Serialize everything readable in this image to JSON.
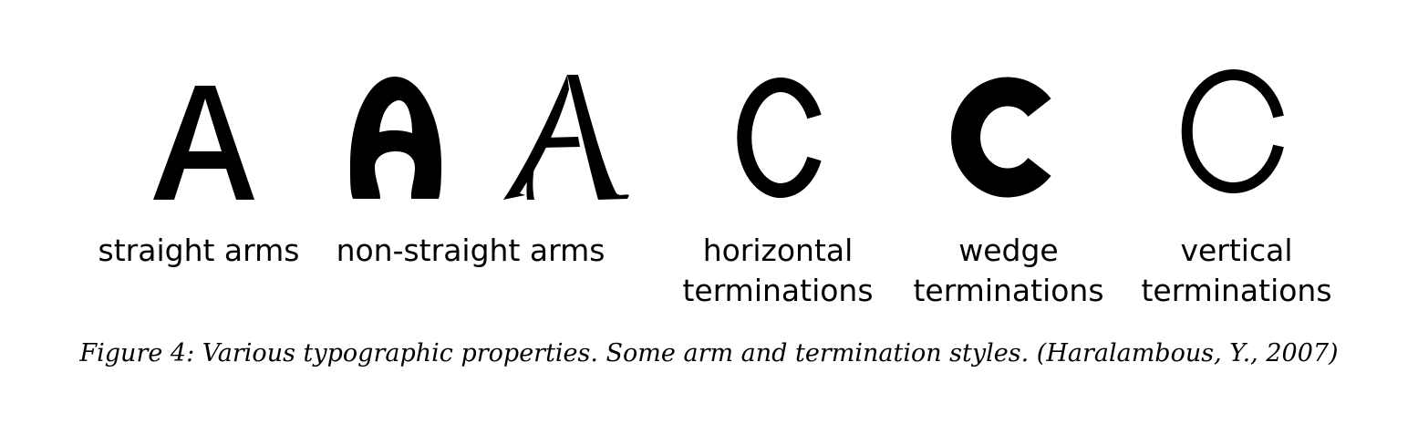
{
  "figure": {
    "items": [
      {
        "glyph": "A",
        "style": "straight-arms",
        "label_lines": [
          "straight arms"
        ]
      },
      {
        "glyph": "A",
        "style": "non-straight-arms-1",
        "label_lines": []
      },
      {
        "glyph": "A",
        "style": "non-straight-arms-2",
        "label_lines": [
          "non-straight arms"
        ]
      },
      {
        "glyph": "C",
        "style": "horizontal-terminations",
        "label_lines": [
          "horizontal",
          "terminations"
        ]
      },
      {
        "glyph": "C",
        "style": "wedge-terminations",
        "label_lines": [
          "wedge",
          "terminations"
        ]
      },
      {
        "glyph": "C",
        "style": "vertical-terminations",
        "label_lines": [
          "vertical",
          "terminations"
        ]
      }
    ],
    "labels": {
      "straight_arms": "straight arms",
      "non_straight_arms": "non-straight arms",
      "horizontal_line1": "horizontal",
      "horizontal_line2": "terminations",
      "wedge_line1": "wedge",
      "wedge_line2": "terminations",
      "vertical_line1": "vertical",
      "vertical_line2": "terminations"
    },
    "caption": "Figure 4: Various typographic properties.  Some arm and termination styles. (Haralambous, Y., 2007)",
    "ink_color": "#000000",
    "background_color": "#ffffff"
  }
}
